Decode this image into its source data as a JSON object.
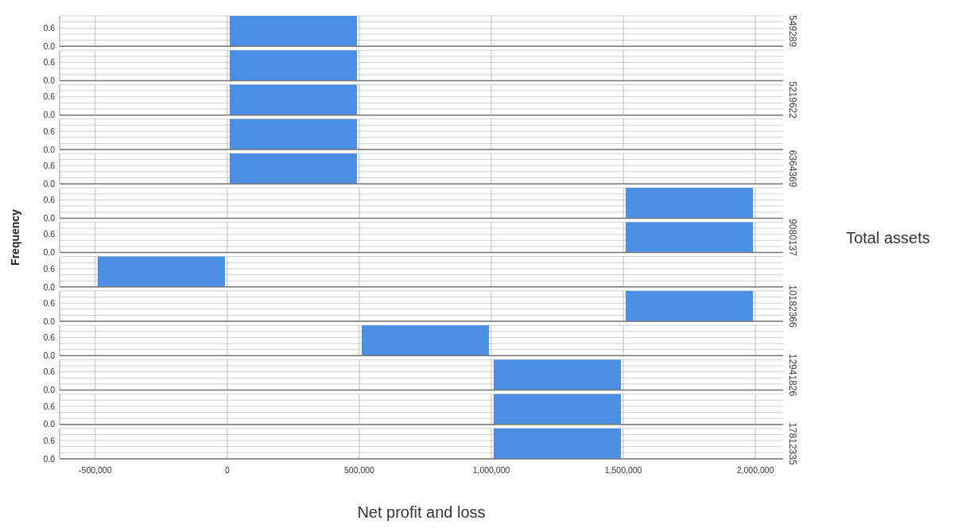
{
  "chart_data": [
    {
      "type": "histogram",
      "y2label": "549289",
      "bins": [
        -500000,
        0,
        500000,
        1000000,
        1500000,
        2000000
      ],
      "values": [
        0,
        1,
        0,
        0,
        0
      ],
      "color": "#4a8fe3",
      "xlim": [
        -635000,
        2105000
      ],
      "ylim": [
        0,
        1
      ],
      "xticks": [
        -500000,
        0,
        500000,
        1000000,
        1500000,
        2000000
      ],
      "yticks": [
        {
          "value": 0,
          "label": "0.0"
        },
        {
          "value": 0.2,
          "label": null
        },
        {
          "value": 0.4,
          "label": null
        },
        {
          "value": 0.6,
          "label": "0.6"
        },
        {
          "value": 0.8,
          "label": null
        },
        {
          "value": 1,
          "label": null
        }
      ],
      "grid": true,
      "tick_labels": "y"
    },
    {
      "type": "histogram",
      "y2label": null,
      "bins": [
        -500000,
        0,
        500000,
        1000000,
        1500000,
        2000000
      ],
      "values": [
        0,
        1,
        0,
        0,
        0
      ],
      "color": "#4a8fe3",
      "xlim": [
        -635000,
        2105000
      ],
      "ylim": [
        0,
        1
      ],
      "xticks": [
        -500000,
        0,
        500000,
        1000000,
        1500000,
        2000000
      ],
      "yticks": [
        {
          "value": 0,
          "label": "0.0"
        },
        {
          "value": 0.2,
          "label": null
        },
        {
          "value": 0.4,
          "label": null
        },
        {
          "value": 0.6,
          "label": "0.6"
        },
        {
          "value": 0.8,
          "label": null
        },
        {
          "value": 1,
          "label": null
        }
      ],
      "grid": true,
      "tick_labels": "y"
    },
    {
      "type": "histogram",
      "y2label": "5219622",
      "bins": [
        -500000,
        0,
        500000,
        1000000,
        1500000,
        2000000
      ],
      "values": [
        0,
        1,
        0,
        0,
        0
      ],
      "color": "#4a8fe3",
      "xlim": [
        -635000,
        2105000
      ],
      "ylim": [
        0,
        1
      ],
      "xticks": [
        -500000,
        0,
        500000,
        1000000,
        1500000,
        2000000
      ],
      "yticks": [
        {
          "value": 0,
          "label": "0.0"
        },
        {
          "value": 0.2,
          "label": null
        },
        {
          "value": 0.4,
          "label": null
        },
        {
          "value": 0.6,
          "label": "0.6"
        },
        {
          "value": 0.8,
          "label": null
        },
        {
          "value": 1,
          "label": null
        }
      ],
      "grid": true,
      "tick_labels": "y"
    },
    {
      "type": "histogram",
      "y2label": null,
      "bins": [
        -500000,
        0,
        500000,
        1000000,
        1500000,
        2000000
      ],
      "values": [
        0,
        1,
        0,
        0,
        0
      ],
      "color": "#4a8fe3",
      "xlim": [
        -635000,
        2105000
      ],
      "ylim": [
        0,
        1
      ],
      "xticks": [
        -500000,
        0,
        500000,
        1000000,
        1500000,
        2000000
      ],
      "yticks": [
        {
          "value": 0,
          "label": "0.0"
        },
        {
          "value": 0.2,
          "label": null
        },
        {
          "value": 0.4,
          "label": null
        },
        {
          "value": 0.6,
          "label": "0.6"
        },
        {
          "value": 0.8,
          "label": null
        },
        {
          "value": 1,
          "label": null
        }
      ],
      "grid": true,
      "tick_labels": "y"
    },
    {
      "type": "histogram",
      "y2label": "6364369",
      "bins": [
        -500000,
        0,
        500000,
        1000000,
        1500000,
        2000000
      ],
      "values": [
        0,
        1,
        0,
        0,
        0
      ],
      "color": "#4a8fe3",
      "xlim": [
        -635000,
        2105000
      ],
      "ylim": [
        0,
        1
      ],
      "xticks": [
        -500000,
        0,
        500000,
        1000000,
        1500000,
        2000000
      ],
      "yticks": [
        {
          "value": 0,
          "label": "0.0"
        },
        {
          "value": 0.2,
          "label": null
        },
        {
          "value": 0.4,
          "label": null
        },
        {
          "value": 0.6,
          "label": "0.6"
        },
        {
          "value": 0.8,
          "label": null
        },
        {
          "value": 1,
          "label": null
        }
      ],
      "grid": true,
      "tick_labels": "y"
    },
    {
      "type": "histogram",
      "y2label": null,
      "bins": [
        -500000,
        0,
        500000,
        1000000,
        1500000,
        2000000
      ],
      "values": [
        0,
        0,
        0,
        0,
        1
      ],
      "color": "#4a8fe3",
      "xlim": [
        -635000,
        2105000
      ],
      "ylim": [
        0,
        1
      ],
      "xticks": [
        -500000,
        0,
        500000,
        1000000,
        1500000,
        2000000
      ],
      "yticks": [
        {
          "value": 0,
          "label": "0.0"
        },
        {
          "value": 0.2,
          "label": null
        },
        {
          "value": 0.4,
          "label": null
        },
        {
          "value": 0.6,
          "label": "0.6"
        },
        {
          "value": 0.8,
          "label": null
        },
        {
          "value": 1,
          "label": null
        }
      ],
      "grid": true,
      "tick_labels": "y"
    },
    {
      "type": "histogram",
      "y2label": "9080137",
      "ylabel": "Frequency",
      "annotations": [
        "Total assets"
      ],
      "bins": [
        -500000,
        0,
        500000,
        1000000,
        1500000,
        2000000
      ],
      "values": [
        0,
        0,
        0,
        0,
        1
      ],
      "color": "#4a8fe3",
      "xlim": [
        -635000,
        2105000
      ],
      "ylim": [
        0,
        1
      ],
      "xticks": [
        -500000,
        0,
        500000,
        1000000,
        1500000,
        2000000
      ],
      "yticks": [
        {
          "value": 0,
          "label": "0.0"
        },
        {
          "value": 0.2,
          "label": null
        },
        {
          "value": 0.4,
          "label": null
        },
        {
          "value": 0.6,
          "label": "0.6"
        },
        {
          "value": 0.8,
          "label": null
        },
        {
          "value": 1,
          "label": null
        }
      ],
      "grid": true,
      "tick_labels": "y"
    },
    {
      "type": "histogram",
      "y2label": null,
      "bins": [
        -500000,
        0,
        500000,
        1000000,
        1500000,
        2000000
      ],
      "values": [
        1,
        0,
        0,
        0,
        0
      ],
      "color": "#4a8fe3",
      "xlim": [
        -635000,
        2105000
      ],
      "ylim": [
        0,
        1
      ],
      "xticks": [
        -500000,
        0,
        500000,
        1000000,
        1500000,
        2000000
      ],
      "yticks": [
        {
          "value": 0,
          "label": "0.0"
        },
        {
          "value": 0.2,
          "label": null
        },
        {
          "value": 0.4,
          "label": null
        },
        {
          "value": 0.6,
          "label": "0.6"
        },
        {
          "value": 0.8,
          "label": null
        },
        {
          "value": 1,
          "label": null
        }
      ],
      "grid": true,
      "tick_labels": "y"
    },
    {
      "type": "histogram",
      "y2label": "10182366",
      "bins": [
        -500000,
        0,
        500000,
        1000000,
        1500000,
        2000000
      ],
      "values": [
        0,
        0,
        0,
        0,
        1
      ],
      "color": "#4a8fe3",
      "xlim": [
        -635000,
        2105000
      ],
      "ylim": [
        0,
        1
      ],
      "xticks": [
        -500000,
        0,
        500000,
        1000000,
        1500000,
        2000000
      ],
      "yticks": [
        {
          "value": 0,
          "label": "0.0"
        },
        {
          "value": 0.2,
          "label": null
        },
        {
          "value": 0.4,
          "label": null
        },
        {
          "value": 0.6,
          "label": "0.6"
        },
        {
          "value": 0.8,
          "label": null
        },
        {
          "value": 1,
          "label": null
        }
      ],
      "grid": true,
      "tick_labels": "y"
    },
    {
      "type": "histogram",
      "y2label": null,
      "bins": [
        -500000,
        0,
        500000,
        1000000,
        1500000,
        2000000
      ],
      "values": [
        0,
        0,
        1,
        0,
        0
      ],
      "color": "#4a8fe3",
      "xlim": [
        -635000,
        2105000
      ],
      "ylim": [
        0,
        1
      ],
      "xticks": [
        -500000,
        0,
        500000,
        1000000,
        1500000,
        2000000
      ],
      "yticks": [
        {
          "value": 0,
          "label": "0.0"
        },
        {
          "value": 0.2,
          "label": null
        },
        {
          "value": 0.4,
          "label": null
        },
        {
          "value": 0.6,
          "label": "0.6"
        },
        {
          "value": 0.8,
          "label": null
        },
        {
          "value": 1,
          "label": null
        }
      ],
      "grid": true,
      "tick_labels": "y"
    },
    {
      "type": "histogram",
      "y2label": "12941826",
      "bins": [
        -500000,
        0,
        500000,
        1000000,
        1500000,
        2000000
      ],
      "values": [
        0,
        0,
        0,
        1,
        0
      ],
      "color": "#4a8fe3",
      "xlim": [
        -635000,
        2105000
      ],
      "ylim": [
        0,
        1
      ],
      "xticks": [
        -500000,
        0,
        500000,
        1000000,
        1500000,
        2000000
      ],
      "yticks": [
        {
          "value": 0,
          "label": "0.0"
        },
        {
          "value": 0.2,
          "label": null
        },
        {
          "value": 0.4,
          "label": null
        },
        {
          "value": 0.6,
          "label": "0.6"
        },
        {
          "value": 0.8,
          "label": null
        },
        {
          "value": 1,
          "label": null
        }
      ],
      "grid": true,
      "tick_labels": "y"
    },
    {
      "type": "histogram",
      "y2label": null,
      "bins": [
        -500000,
        0,
        500000,
        1000000,
        1500000,
        2000000
      ],
      "values": [
        0,
        0,
        0,
        1,
        0
      ],
      "color": "#4a8fe3",
      "xlim": [
        -635000,
        2105000
      ],
      "ylim": [
        0,
        1
      ],
      "xticks": [
        -500000,
        0,
        500000,
        1000000,
        1500000,
        2000000
      ],
      "yticks": [
        {
          "value": 0,
          "label": "0.0"
        },
        {
          "value": 0.2,
          "label": null
        },
        {
          "value": 0.4,
          "label": null
        },
        {
          "value": 0.6,
          "label": "0.6"
        },
        {
          "value": 0.8,
          "label": null
        },
        {
          "value": 1,
          "label": null
        }
      ],
      "grid": true,
      "tick_labels": "y"
    },
    {
      "type": "histogram",
      "y2label": "17812335",
      "xlabel": "Net profit and loss",
      "bins": [
        -500000,
        0,
        500000,
        1000000,
        1500000,
        2000000
      ],
      "values": [
        0,
        0,
        0,
        1,
        0
      ],
      "color": "#4a8fe3",
      "xlim": [
        -635000,
        2105000
      ],
      "ylim": [
        0,
        1
      ],
      "xticks": [
        {
          "value": -500000,
          "label": "-500,000"
        },
        {
          "value": 0,
          "label": "0"
        },
        {
          "value": 500000,
          "label": "500,000"
        },
        {
          "value": 1000000,
          "label": "1,000,000"
        },
        {
          "value": 1500000,
          "label": "1,500,000"
        },
        {
          "value": 2000000,
          "label": "2,000,000"
        }
      ],
      "yticks": [
        {
          "value": 0,
          "label": "0.0"
        },
        {
          "value": 0.2,
          "label": null
        },
        {
          "value": 0.4,
          "label": null
        },
        {
          "value": 0.6,
          "label": "0.6"
        },
        {
          "value": 0.8,
          "label": null
        },
        {
          "value": 1,
          "label": null
        }
      ],
      "grid": true
    }
  ]
}
